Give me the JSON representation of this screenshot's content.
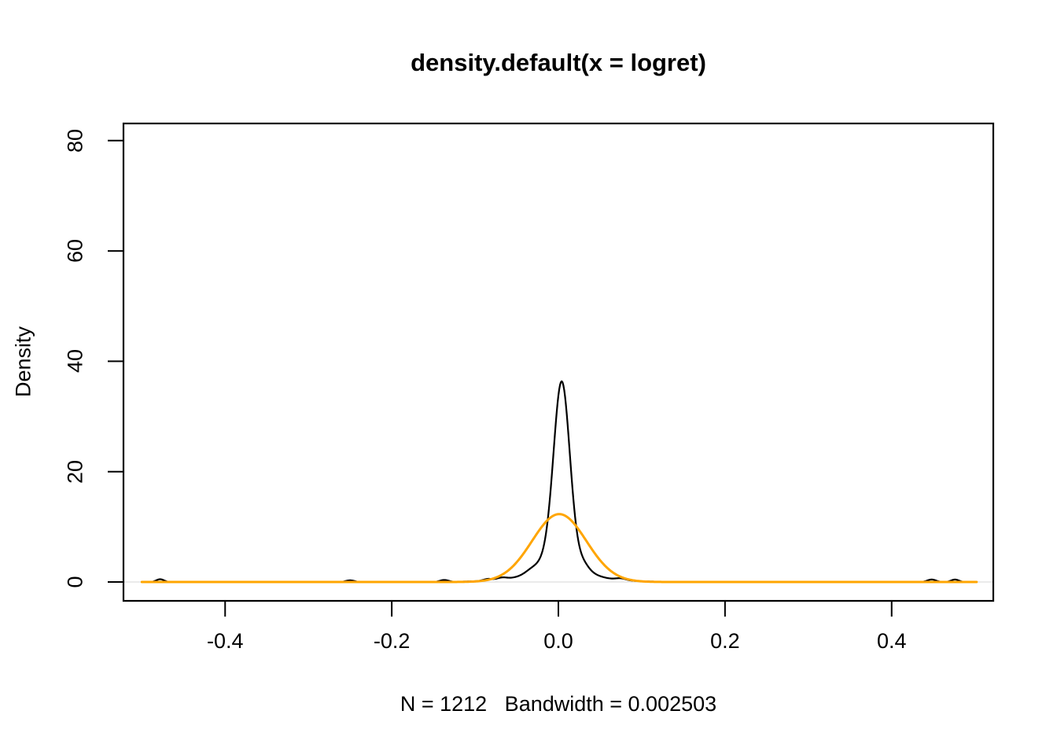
{
  "title": "density.default(x = logret)",
  "chart_data": {
    "type": "line",
    "title": "density.default(x = logret)",
    "xlabel": "N = 1212   Bandwidth = 0.002503",
    "ylabel": "Density",
    "n": 1212,
    "bandwidth": 0.002503,
    "xlim": [
      -0.522,
      0.522
    ],
    "ylim": [
      -3.42,
      83.1
    ],
    "grid": false,
    "legend": "none",
    "frame_color": "#000000",
    "background_color": "#ffffff",
    "x_ticks": {
      "values": [
        -0.4,
        -0.2,
        0.0,
        0.2,
        0.4
      ],
      "labels": [
        "-0.4",
        "-0.2",
        "0.0",
        "0.2",
        "0.4"
      ]
    },
    "y_ticks": {
      "values": [
        0,
        20,
        40,
        60,
        80
      ],
      "labels": [
        "0",
        "20",
        "40",
        "60",
        "80"
      ]
    },
    "zero_line": {
      "y": 0,
      "color": "#e4e4e4"
    },
    "series": [
      {
        "name": "kde-density-logret",
        "color": "#000000",
        "stroke_width": 2.2,
        "x_range": [
          -0.5,
          0.502
        ],
        "peak": {
          "x": 0.004,
          "y": 36.4
        },
        "gaussian_components": [
          [
            30.5,
            0.004,
            0.0095
          ],
          [
            4.6,
            0.002,
            0.021
          ],
          [
            1.3,
            0.0,
            0.047
          ],
          [
            0.6,
            0.031,
            0.006
          ],
          [
            0.35,
            -0.033,
            0.007
          ],
          [
            0.35,
            -0.068,
            0.006
          ],
          [
            0.3,
            0.075,
            0.006
          ],
          [
            0.5,
            -0.478,
            0.0045
          ],
          [
            0.3,
            -0.25,
            0.005
          ],
          [
            0.35,
            -0.137,
            0.005
          ],
          [
            0.3,
            -0.085,
            0.005
          ],
          [
            0.45,
            0.448,
            0.005
          ],
          [
            0.45,
            0.476,
            0.0045
          ]
        ]
      },
      {
        "name": "normal-density-overlay",
        "color": "#FFA500",
        "stroke_width": 3,
        "x_range": [
          -0.5,
          0.502
        ],
        "peak": {
          "x": 0.001,
          "y": 12.3
        },
        "gaussian_components": [
          [
            12.3,
            0.001,
            0.0325
          ]
        ]
      }
    ]
  }
}
